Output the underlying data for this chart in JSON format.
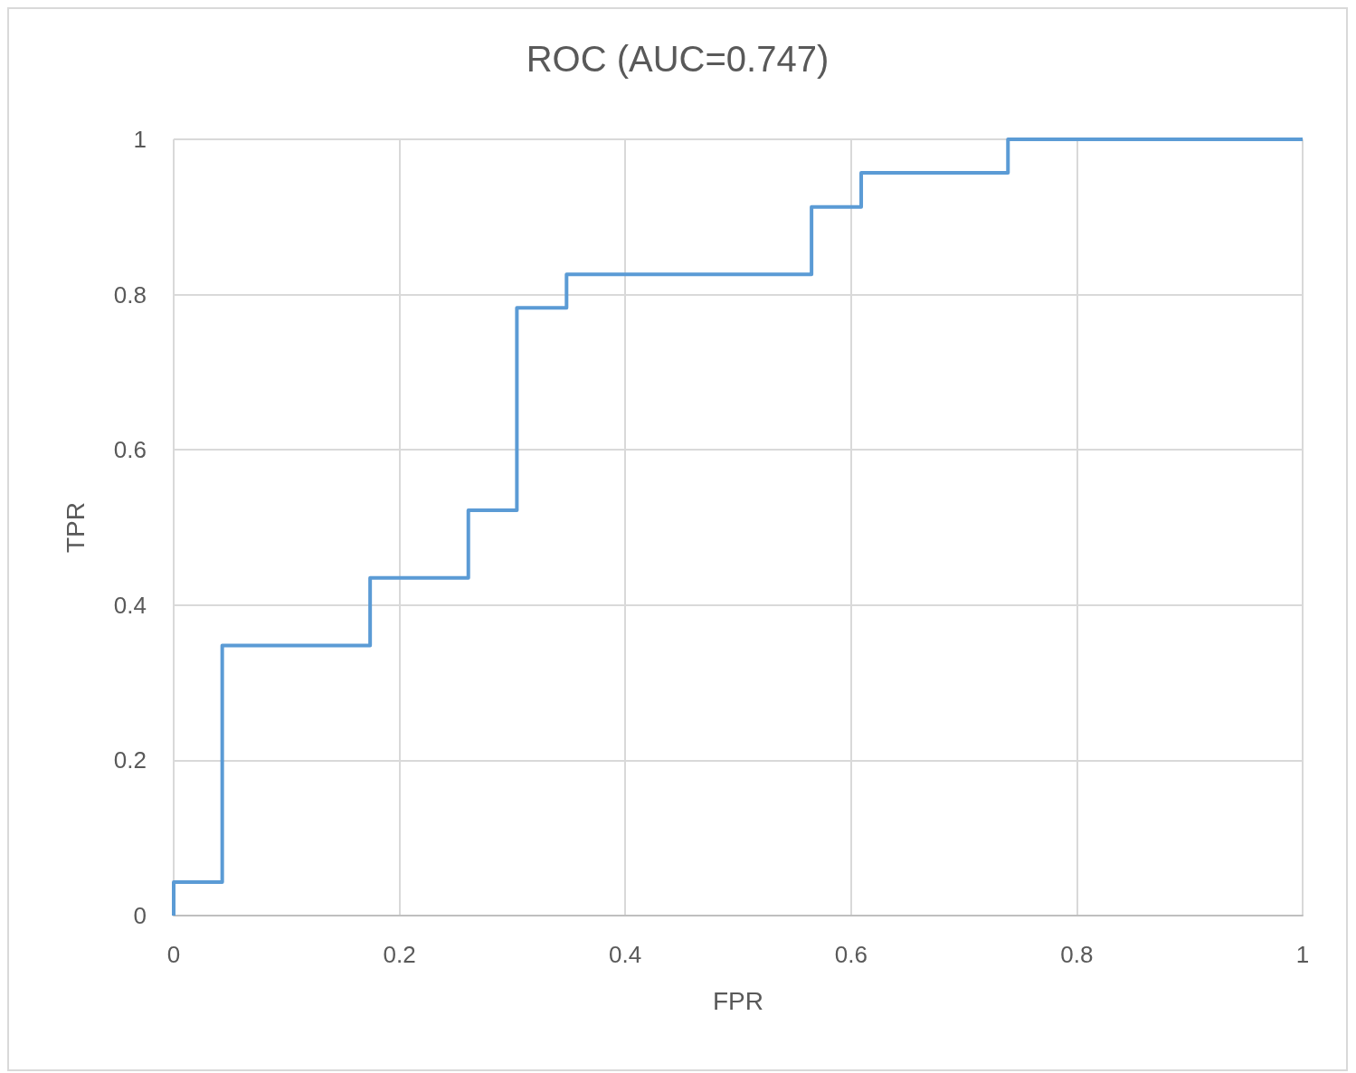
{
  "chart_data": {
    "type": "step",
    "title": "ROC (AUC=0.747)",
    "xlabel": "FPR",
    "ylabel": "TPR",
    "x": [
      0,
      0,
      0.043,
      0.174,
      0.261,
      0.304,
      0.348,
      0.565,
      0.609,
      0.739,
      1
    ],
    "series": [
      {
        "color": "#5b9bd5",
        "values": [
          0,
          0.043,
          0.348,
          0.435,
          0.522,
          0.783,
          0.826,
          0.913,
          0.957,
          1,
          1
        ]
      }
    ],
    "xlim": [
      0,
      1
    ],
    "ylim": [
      0,
      1
    ],
    "xticks": [
      0,
      0.2,
      0.4,
      0.6,
      0.8,
      1
    ],
    "yticks": [
      0,
      0.2,
      0.4,
      0.6,
      0.8,
      1
    ],
    "grid": true,
    "marker": "none",
    "line_style": "solid"
  }
}
